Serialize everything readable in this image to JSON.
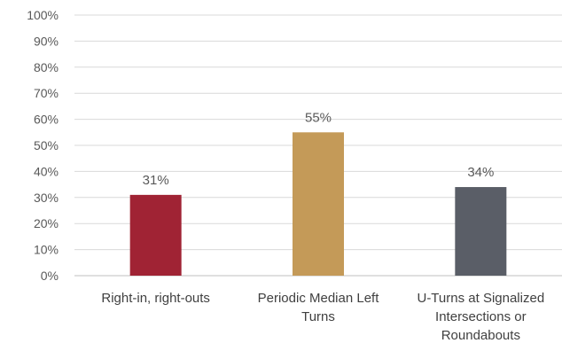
{
  "chart_data": {
    "type": "bar",
    "categories": [
      [
        "Right-in, right-outs"
      ],
      [
        "Periodic Median Left",
        "Turns"
      ],
      [
        "U-Turns at Signalized",
        "Intersections or",
        "Roundabouts"
      ]
    ],
    "values": [
      31,
      55,
      34
    ],
    "data_labels": [
      "31%",
      "55%",
      "34%"
    ],
    "colors": [
      "#a02334",
      "#c49a58",
      "#5a5e67"
    ],
    "y_ticks": [
      "0%",
      "10%",
      "20%",
      "30%",
      "40%",
      "50%",
      "60%",
      "70%",
      "80%",
      "90%",
      "100%"
    ],
    "ylim": [
      0,
      100
    ],
    "grid": true,
    "legend": "none"
  }
}
